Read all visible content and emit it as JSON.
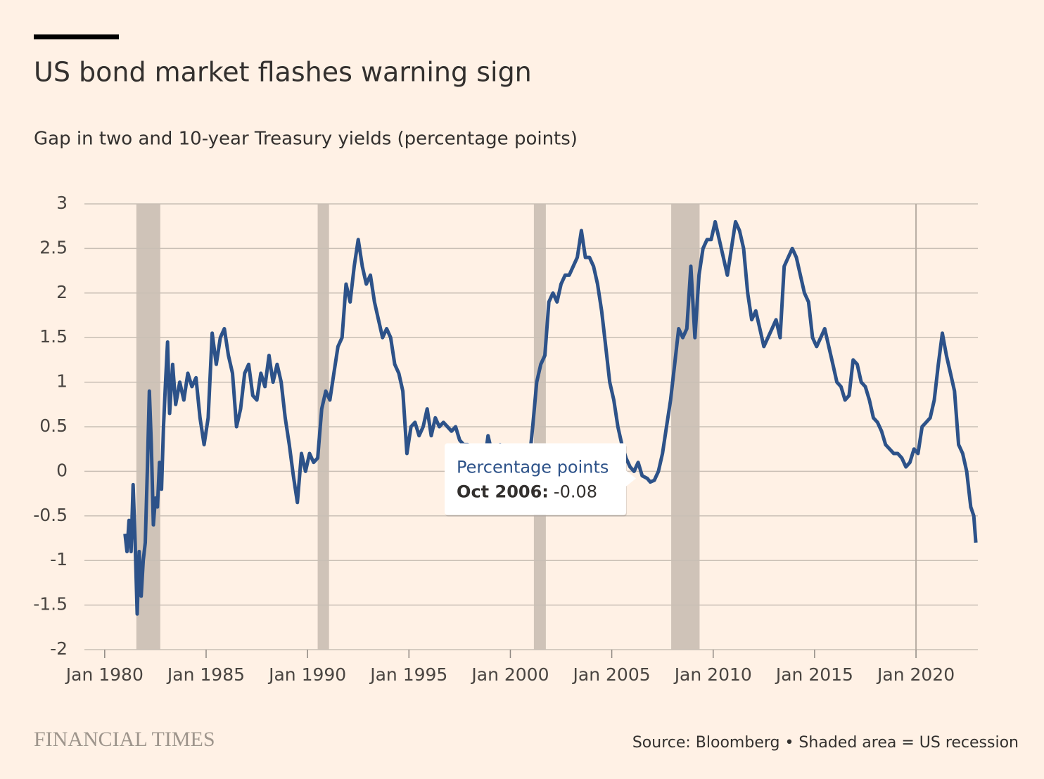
{
  "chart_data": {
    "type": "line",
    "title": "US bond market flashes warning sign",
    "subtitle": "Gap in two and 10-year Treasury yields (percentage points)",
    "source": "Source: Bloomberg • Shaded area = US recession",
    "brand": "FINANCIAL TIMES",
    "xlim": [
      1979,
      2023.05
    ],
    "xticks": [
      {
        "value": 1980,
        "label": "Jan 1980"
      },
      {
        "value": 1985,
        "label": "Jan 1985"
      },
      {
        "value": 1990,
        "label": "Jan 1990"
      },
      {
        "value": 1995,
        "label": "Jan 1995"
      },
      {
        "value": 2000,
        "label": "Jan 2000"
      },
      {
        "value": 2005,
        "label": "Jan 2005"
      },
      {
        "value": 2010,
        "label": "Jan 2010"
      },
      {
        "value": 2015,
        "label": "Jan 2015"
      },
      {
        "value": 2020,
        "label": "Jan 2020"
      }
    ],
    "ylim": [
      -2,
      3
    ],
    "yticks": [
      3,
      2.5,
      2,
      1.5,
      1,
      0.5,
      0,
      -0.5,
      -1,
      -1.5,
      -2
    ],
    "grid": true,
    "reference_x": 2020,
    "recessions": [
      [
        1981.56,
        1982.74
      ],
      [
        1990.5,
        1991.06
      ],
      [
        2001.16,
        2001.75
      ],
      [
        2007.93,
        2009.33
      ]
    ],
    "recession_color": "#cfc3b8",
    "x": [
      1981.0,
      1981.1,
      1981.2,
      1981.3,
      1981.4,
      1981.5,
      1981.6,
      1981.7,
      1981.8,
      1981.9,
      1982.0,
      1982.1,
      1982.2,
      1982.3,
      1982.4,
      1982.5,
      1982.6,
      1982.7,
      1982.8,
      1982.9,
      1983.0,
      1983.1,
      1983.2,
      1983.35,
      1983.5,
      1983.7,
      1983.9,
      1984.1,
      1984.3,
      1984.5,
      1984.7,
      1984.9,
      1985.1,
      1985.3,
      1985.5,
      1985.7,
      1985.9,
      1986.1,
      1986.3,
      1986.5,
      1986.7,
      1986.9,
      1987.1,
      1987.3,
      1987.5,
      1987.7,
      1987.9,
      1988.1,
      1988.3,
      1988.5,
      1988.7,
      1988.9,
      1989.1,
      1989.3,
      1989.5,
      1989.7,
      1989.9,
      1990.1,
      1990.3,
      1990.5,
      1990.7,
      1990.9,
      1991.1,
      1991.3,
      1991.5,
      1991.7,
      1991.9,
      1992.1,
      1992.3,
      1992.5,
      1992.7,
      1992.9,
      1993.1,
      1993.3,
      1993.5,
      1993.7,
      1993.9,
      1994.1,
      1994.3,
      1994.5,
      1994.7,
      1994.9,
      1995.1,
      1995.3,
      1995.5,
      1995.7,
      1995.9,
      1996.1,
      1996.3,
      1996.5,
      1996.7,
      1996.9,
      1997.1,
      1997.3,
      1997.5,
      1997.7,
      1997.9,
      1998.1,
      1998.3,
      1998.5,
      1998.7,
      1998.9,
      1999.1,
      1999.3,
      1999.5,
      1999.7,
      1999.9,
      2000.1,
      2000.3,
      2000.5,
      2000.7,
      2000.9,
      2001.1,
      2001.3,
      2001.5,
      2001.7,
      2001.9,
      2002.1,
      2002.3,
      2002.5,
      2002.7,
      2002.9,
      2003.1,
      2003.3,
      2003.5,
      2003.7,
      2003.9,
      2004.1,
      2004.3,
      2004.5,
      2004.7,
      2004.9,
      2005.1,
      2005.3,
      2005.5,
      2005.7,
      2005.9,
      2006.1,
      2006.3,
      2006.5,
      2006.75,
      2006.9,
      2007.1,
      2007.3,
      2007.5,
      2007.7,
      2007.9,
      2008.1,
      2008.3,
      2008.5,
      2008.7,
      2008.9,
      2009.1,
      2009.3,
      2009.5,
      2009.7,
      2009.9,
      2010.1,
      2010.3,
      2010.5,
      2010.7,
      2010.9,
      2011.1,
      2011.3,
      2011.5,
      2011.7,
      2011.9,
      2012.1,
      2012.3,
      2012.5,
      2012.7,
      2012.9,
      2013.1,
      2013.3,
      2013.5,
      2013.7,
      2013.9,
      2014.1,
      2014.3,
      2014.5,
      2014.7,
      2014.9,
      2015.1,
      2015.3,
      2015.5,
      2015.7,
      2015.9,
      2016.1,
      2016.3,
      2016.5,
      2016.7,
      2016.9,
      2017.1,
      2017.3,
      2017.5,
      2017.7,
      2017.9,
      2018.1,
      2018.3,
      2018.5,
      2018.7,
      2018.9,
      2019.1,
      2019.3,
      2019.5,
      2019.7,
      2019.9,
      2020.1,
      2020.3,
      2020.5,
      2020.7,
      2020.9,
      2021.1,
      2021.3,
      2021.5,
      2021.7,
      2021.9,
      2022.1,
      2022.3,
      2022.5,
      2022.7,
      2022.85,
      2022.95
    ],
    "series": [
      {
        "name": "Percentage points",
        "color": "#2d5289",
        "values": [
          -0.7,
          -0.9,
          -0.55,
          -0.9,
          -0.15,
          -0.8,
          -1.6,
          -0.9,
          -1.4,
          -1.0,
          -0.8,
          0.0,
          0.9,
          0.3,
          -0.6,
          -0.3,
          -0.4,
          0.1,
          -0.2,
          0.5,
          1.0,
          1.45,
          0.65,
          1.2,
          0.75,
          1.0,
          0.8,
          1.1,
          0.95,
          1.05,
          0.6,
          0.3,
          0.6,
          1.55,
          1.2,
          1.5,
          1.6,
          1.3,
          1.1,
          0.5,
          0.7,
          1.1,
          1.2,
          0.85,
          0.8,
          1.1,
          0.95,
          1.3,
          1.0,
          1.2,
          1.0,
          0.6,
          0.3,
          -0.05,
          -0.35,
          0.2,
          0.0,
          0.2,
          0.1,
          0.15,
          0.7,
          0.9,
          0.8,
          1.1,
          1.4,
          1.5,
          2.1,
          1.9,
          2.3,
          2.6,
          2.3,
          2.1,
          2.2,
          1.9,
          1.7,
          1.5,
          1.6,
          1.5,
          1.2,
          1.1,
          0.9,
          0.2,
          0.5,
          0.55,
          0.4,
          0.5,
          0.7,
          0.4,
          0.6,
          0.5,
          0.55,
          0.5,
          0.45,
          0.5,
          0.35,
          0.3,
          0.3,
          0.2,
          0.15,
          0.1,
          0.05,
          0.4,
          0.2,
          0.1,
          0.3,
          0.2,
          0.15,
          -0.2,
          -0.45,
          -0.35,
          -0.15,
          0.05,
          0.5,
          1.0,
          1.2,
          1.3,
          1.9,
          2.0,
          1.9,
          2.1,
          2.2,
          2.2,
          2.3,
          2.4,
          2.7,
          2.4,
          2.4,
          2.3,
          2.1,
          1.8,
          1.4,
          1.0,
          0.8,
          0.5,
          0.3,
          0.15,
          0.05,
          0.0,
          0.1,
          -0.05,
          -0.08,
          -0.12,
          -0.1,
          0.0,
          0.2,
          0.5,
          0.8,
          1.2,
          1.6,
          1.5,
          1.6,
          2.3,
          1.5,
          2.2,
          2.5,
          2.6,
          2.6,
          2.8,
          2.6,
          2.4,
          2.2,
          2.5,
          2.8,
          2.7,
          2.5,
          2.0,
          1.7,
          1.8,
          1.6,
          1.4,
          1.5,
          1.6,
          1.7,
          1.5,
          2.3,
          2.4,
          2.5,
          2.4,
          2.2,
          2.0,
          1.9,
          1.5,
          1.4,
          1.5,
          1.6,
          1.4,
          1.2,
          1.0,
          0.95,
          0.8,
          0.85,
          1.25,
          1.2,
          1.0,
          0.95,
          0.8,
          0.6,
          0.55,
          0.45,
          0.3,
          0.25,
          0.2,
          0.2,
          0.15,
          0.05,
          0.1,
          0.25,
          0.2,
          0.5,
          0.55,
          0.6,
          0.8,
          1.2,
          1.55,
          1.3,
          1.1,
          0.9,
          0.3,
          0.2,
          0.0,
          -0.4,
          -0.5,
          -0.8
        ]
      }
    ],
    "tooltip": {
      "title": "Percentage points",
      "label": "Oct 2006:",
      "x": 2006.75,
      "value": -0.08
    }
  }
}
